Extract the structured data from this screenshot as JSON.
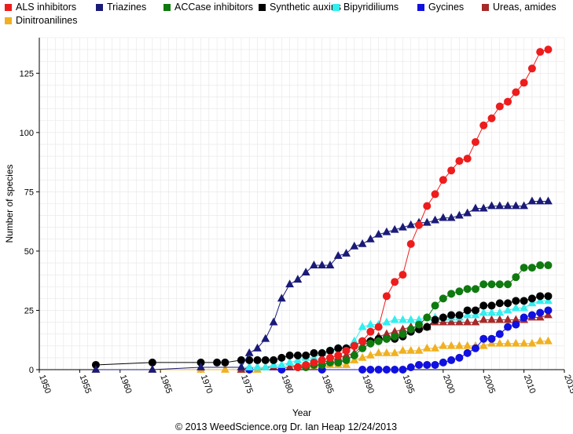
{
  "chart_data": {
    "type": "line",
    "xlabel": "Year",
    "ylabel": "Number of species",
    "xlim": [
      1950,
      2015
    ],
    "ylim": [
      0,
      140
    ],
    "x_ticks": [
      1950,
      1955,
      1960,
      1965,
      1970,
      1975,
      1980,
      1985,
      1990,
      1995,
      2000,
      2005,
      2010,
      2015
    ],
    "y_ticks": [
      0,
      25,
      50,
      75,
      100,
      125
    ],
    "grid": true,
    "legend_position": "top",
    "footer": "© 2013 WeedScience.org Dr. Ian Heap 12/24/2013",
    "series": [
      {
        "name": "ALS inhibitors",
        "color": "#ee1c1c",
        "marker": "circle",
        "x": [
          1982,
          1983,
          1984,
          1985,
          1986,
          1987,
          1988,
          1989,
          1990,
          1991,
          1992,
          1993,
          1994,
          1995,
          1996,
          1997,
          1998,
          1999,
          2000,
          2001,
          2002,
          2003,
          2004,
          2005,
          2006,
          2007,
          2008,
          2009,
          2010,
          2011,
          2012,
          2013
        ],
        "y": [
          1,
          2,
          3,
          4,
          5,
          6,
          8,
          10,
          12,
          16,
          18,
          31,
          37,
          40,
          53,
          61,
          69,
          74,
          80,
          84,
          88,
          89,
          96,
          103,
          106,
          111,
          113,
          117,
          121,
          127,
          134,
          135
        ]
      },
      {
        "name": "Triazines",
        "color": "#1a1a78",
        "marker": "triangle",
        "x": [
          1957,
          1964,
          1970,
          1975,
          1976,
          1977,
          1978,
          1979,
          1980,
          1981,
          1982,
          1983,
          1984,
          1985,
          1986,
          1987,
          1988,
          1989,
          1990,
          1991,
          1992,
          1993,
          1994,
          1995,
          1996,
          1997,
          1998,
          1999,
          2000,
          2001,
          2002,
          2003,
          2004,
          2005,
          2006,
          2007,
          2008,
          2009,
          2010,
          2011,
          2012,
          2013
        ],
        "y": [
          0,
          0,
          1,
          1,
          7,
          9,
          13,
          20,
          30,
          36,
          38,
          41,
          44,
          44,
          44,
          48,
          49,
          52,
          53,
          55,
          57,
          58,
          59,
          60,
          61,
          62,
          62,
          63,
          64,
          64,
          65,
          66,
          68,
          68,
          69,
          69,
          69,
          69,
          69,
          71,
          71,
          71
        ]
      },
      {
        "name": "ACCase inhibitors",
        "color": "#0f7a0f",
        "marker": "circle",
        "x": [
          1982,
          1983,
          1984,
          1985,
          1986,
          1987,
          1988,
          1989,
          1990,
          1991,
          1992,
          1993,
          1994,
          1995,
          1996,
          1997,
          1998,
          1999,
          2000,
          2001,
          2002,
          2003,
          2004,
          2005,
          2006,
          2007,
          2008,
          2009,
          2010,
          2011,
          2012,
          2013
        ],
        "y": [
          1,
          1,
          2,
          2,
          3,
          3,
          4,
          6,
          9,
          11,
          12,
          13,
          14,
          15,
          17,
          19,
          22,
          27,
          30,
          32,
          33,
          34,
          34,
          36,
          36,
          36,
          36,
          39,
          43,
          43,
          44,
          44
        ]
      },
      {
        "name": "Synthetic auxins",
        "color": "#000000",
        "marker": "circle",
        "x": [
          1957,
          1964,
          1970,
          1972,
          1973,
          1975,
          1976,
          1977,
          1978,
          1979,
          1980,
          1981,
          1982,
          1983,
          1984,
          1985,
          1986,
          1987,
          1988,
          1989,
          1990,
          1991,
          1992,
          1993,
          1994,
          1995,
          1996,
          1997,
          1998,
          1999,
          2000,
          2001,
          2002,
          2003,
          2004,
          2005,
          2006,
          2007,
          2008,
          2009,
          2010,
          2011,
          2012,
          2013
        ],
        "y": [
          2,
          3,
          3,
          3,
          3,
          4,
          4,
          4,
          4,
          4,
          5,
          6,
          6,
          6,
          7,
          7,
          8,
          9,
          9,
          10,
          12,
          12,
          13,
          13,
          13,
          14,
          16,
          17,
          18,
          21,
          22,
          23,
          23,
          25,
          25,
          27,
          27,
          28,
          28,
          29,
          29,
          30,
          31,
          31
        ]
      },
      {
        "name": "Bipyridiliums",
        "color": "#33eeee",
        "marker": "triangle",
        "x": [
          1975,
          1976,
          1977,
          1978,
          1979,
          1980,
          1981,
          1982,
          1983,
          1984,
          1985,
          1986,
          1987,
          1988,
          1989,
          1990,
          1991,
          1992,
          1993,
          1994,
          1995,
          1996,
          1997,
          1998,
          1999,
          2000,
          2001,
          2002,
          2003,
          2004,
          2005,
          2006,
          2007,
          2008,
          2009,
          2010,
          2011,
          2012,
          2013
        ],
        "y": [
          1,
          1,
          1,
          1,
          2,
          2,
          3,
          4,
          5,
          5,
          7,
          8,
          9,
          9,
          12,
          18,
          19,
          19,
          20,
          21,
          21,
          21,
          21,
          22,
          22,
          22,
          22,
          22,
          23,
          23,
          24,
          24,
          24,
          25,
          26,
          26,
          28,
          29,
          29
        ]
      },
      {
        "name": "Gycines",
        "color": "#1010e0",
        "marker": "circle",
        "x": [
          1976,
          1980,
          1985,
          1990,
          1991,
          1992,
          1993,
          1994,
          1995,
          1996,
          1997,
          1998,
          1999,
          2000,
          2001,
          2002,
          2003,
          2004,
          2005,
          2006,
          2007,
          2008,
          2009,
          2010,
          2011,
          2012,
          2013
        ],
        "y": [
          0,
          0,
          0,
          0,
          0,
          0,
          0,
          0,
          0,
          1,
          2,
          2,
          2,
          3,
          4,
          5,
          7,
          9,
          13,
          13,
          15,
          18,
          19,
          22,
          23,
          24,
          25
        ]
      },
      {
        "name": "Ureas, amides",
        "color": "#a52a2a",
        "marker": "triangle",
        "x": [
          1975,
          1976,
          1977,
          1978,
          1979,
          1980,
          1981,
          1982,
          1983,
          1984,
          1985,
          1986,
          1987,
          1988,
          1989,
          1990,
          1991,
          1992,
          1993,
          1994,
          1995,
          1996,
          1997,
          1998,
          1999,
          2000,
          2001,
          2002,
          2003,
          2004,
          2005,
          2006,
          2007,
          2008,
          2009,
          2010,
          2011,
          2012,
          2013
        ],
        "y": [
          0,
          1,
          1,
          1,
          1,
          1,
          1,
          2,
          2,
          3,
          3,
          4,
          5,
          6,
          7,
          10,
          12,
          14,
          15,
          16,
          17,
          18,
          18,
          18,
          20,
          20,
          20,
          20,
          20,
          20,
          21,
          21,
          21,
          21,
          21,
          21,
          22,
          22,
          23
        ]
      },
      {
        "name": "Dinitroanilines",
        "color": "#f0b020",
        "marker": "triangle",
        "x": [
          1957,
          1964,
          1970,
          1973,
          1975,
          1976,
          1977,
          1978,
          1979,
          1980,
          1981,
          1982,
          1983,
          1984,
          1985,
          1986,
          1987,
          1988,
          1989,
          1990,
          1991,
          1992,
          1993,
          1994,
          1995,
          1996,
          1997,
          1998,
          1999,
          2000,
          2001,
          2002,
          2003,
          2004,
          2005,
          2006,
          2007,
          2008,
          2009,
          2010,
          2011,
          2012,
          2013
        ],
        "y": [
          0,
          0,
          0,
          0,
          0,
          0,
          0,
          1,
          1,
          1,
          1,
          1,
          1,
          1,
          1,
          2,
          2,
          2,
          4,
          5,
          6,
          7,
          7,
          7,
          8,
          8,
          8,
          9,
          9,
          10,
          10,
          10,
          10,
          10,
          10,
          11,
          11,
          11,
          11,
          11,
          11,
          12,
          12
        ]
      }
    ]
  }
}
